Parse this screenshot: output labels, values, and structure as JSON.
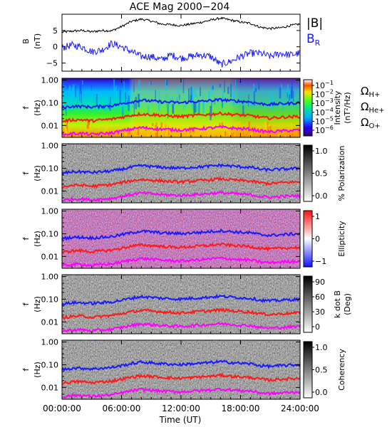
{
  "title": "ACE Mag 2000−204",
  "xlabel": "Time (UT)",
  "x_ticks": [
    "00:00:00",
    "06:00:00",
    "12:00:00",
    "18:00:00",
    "24:00:00"
  ],
  "legend_top": {
    "b_total": "|B|",
    "b_r_main": "B",
    "b_r_sub": "R"
  },
  "freq_labels": [
    {
      "main": "Ω",
      "sub": "H+",
      "color": "#1a1aff"
    },
    {
      "main": "Ω",
      "sub": "He+",
      "color": "#ff1a1a"
    },
    {
      "main": "Ω",
      "sub": "O+",
      "color": "#ff00ff"
    }
  ],
  "colors": {
    "b_total": "#000000",
    "b_r": "#1a1aff",
    "f_h": "#1a1aff",
    "f_he": "#ff1a1a",
    "f_o": "#ff00ff"
  },
  "chart_data": [
    {
      "type": "line",
      "panel": "field",
      "ylabel_main": "B",
      "ylabel_unit": "(nT)",
      "y_ticks": [
        "5",
        "0",
        "−5"
      ],
      "ylim": [
        -7.5,
        10
      ],
      "xlim_hours": [
        0,
        24
      ],
      "series": [
        {
          "name": "|B|",
          "x": [
            0,
            1,
            2,
            3,
            4,
            5,
            6,
            7,
            8,
            9,
            10,
            11,
            12,
            13,
            14,
            15,
            16,
            17,
            18,
            19,
            20,
            21,
            22,
            23,
            24
          ],
          "y": [
            4.5,
            4.8,
            5.0,
            4.6,
            5.0,
            4.9,
            6.2,
            7.8,
            8.5,
            7.9,
            7.0,
            6.8,
            6.5,
            7.0,
            7.5,
            8.2,
            8.8,
            8.2,
            7.6,
            7.2,
            6.0,
            5.6,
            5.8,
            6.5,
            7.0
          ]
        },
        {
          "name": "BR",
          "x": [
            0,
            1,
            2,
            3,
            4,
            5,
            6,
            7,
            8,
            9,
            10,
            11,
            12,
            13,
            14,
            15,
            16,
            17,
            18,
            19,
            20,
            21,
            22,
            23,
            24
          ],
          "y": [
            -0.3,
            0.5,
            0.0,
            -1.5,
            -1.0,
            1.0,
            0.0,
            -1.5,
            -3.0,
            -3.0,
            -4.0,
            -2.5,
            -3.5,
            -3.0,
            -2.5,
            -3.0,
            -5.5,
            -4.5,
            -3.0,
            -2.0,
            -2.0,
            -3.0,
            -2.0,
            -2.5,
            -2.0
          ]
        }
      ]
    },
    {
      "type": "heatmap",
      "panel": "intensity",
      "ylabel_main": "f",
      "ylabel_unit": "(Hz)",
      "y_ticks": [
        "1.00",
        "0.10",
        "0.01"
      ],
      "ylim_log": [
        0.003,
        1.2
      ],
      "colorbar_title": "Intensity",
      "colorbar_unit": "(nT²/Hz)",
      "colorbar_ticks": [
        {
          "b": "10",
          "e": "−1"
        },
        {
          "b": "10",
          "e": "−2"
        },
        {
          "b": "10",
          "e": "−3"
        },
        {
          "b": "10",
          "e": "−4"
        },
        {
          "b": "10",
          "e": "−5"
        },
        {
          "b": "10",
          "e": "−6"
        }
      ]
    },
    {
      "type": "heatmap",
      "panel": "polarization",
      "ylabel_main": "f",
      "ylabel_unit": "(Hz)",
      "y_ticks": [
        "1.00",
        "0.10",
        "0.01"
      ],
      "colorbar_title": "% Polarization",
      "colorbar_ticks": [
        "1.0",
        "0.5",
        "0.0"
      ]
    },
    {
      "type": "heatmap",
      "panel": "ellipticity",
      "ylabel_main": "f",
      "ylabel_unit": "(Hz)",
      "y_ticks": [
        "1.00",
        "0.10",
        "0.01"
      ],
      "colorbar_title": "Ellipticity",
      "colorbar_ticks": [
        "1",
        "0",
        "−1"
      ]
    },
    {
      "type": "heatmap",
      "panel": "kdotb",
      "ylabel_main": "f",
      "ylabel_unit": "(Hz)",
      "y_ticks": [
        "1.00",
        "0.10",
        "0.01"
      ],
      "colorbar_title": "k dot B",
      "colorbar_unit": "(Deg)",
      "colorbar_ticks": [
        "90",
        "60",
        "30",
        "0"
      ]
    },
    {
      "type": "heatmap",
      "panel": "coherency",
      "ylabel_main": "f",
      "ylabel_unit": "(Hz)",
      "y_ticks": [
        "1.00",
        "0.10",
        "0.01"
      ],
      "colorbar_title": "Coherency",
      "colorbar_ticks": [
        "1.0",
        "0.5",
        "0.0"
      ]
    }
  ],
  "gyrofrequency_lines": {
    "x": [
      0,
      1,
      2,
      3,
      4,
      5,
      6,
      7,
      8,
      9,
      10,
      11,
      12,
      13,
      14,
      15,
      16,
      17,
      18,
      19,
      20,
      21,
      22,
      23,
      24
    ],
    "H+": [
      0.06,
      0.07,
      0.07,
      0.065,
      0.07,
      0.075,
      0.09,
      0.11,
      0.13,
      0.12,
      0.11,
      0.105,
      0.1,
      0.11,
      0.115,
      0.125,
      0.135,
      0.125,
      0.115,
      0.11,
      0.09,
      0.085,
      0.09,
      0.095,
      0.1
    ],
    "He+": [
      0.015,
      0.0175,
      0.018,
      0.016,
      0.0175,
      0.019,
      0.023,
      0.028,
      0.032,
      0.03,
      0.028,
      0.026,
      0.025,
      0.027,
      0.029,
      0.031,
      0.034,
      0.031,
      0.029,
      0.027,
      0.023,
      0.021,
      0.023,
      0.024,
      0.025
    ],
    "O+": [
      0.0038,
      0.0044,
      0.0045,
      0.004,
      0.0044,
      0.0047,
      0.0057,
      0.007,
      0.0081,
      0.0075,
      0.0069,
      0.0066,
      0.0063,
      0.0068,
      0.0072,
      0.0078,
      0.0084,
      0.0078,
      0.0072,
      0.0069,
      0.0057,
      0.0053,
      0.0057,
      0.006,
      0.0063
    ]
  }
}
